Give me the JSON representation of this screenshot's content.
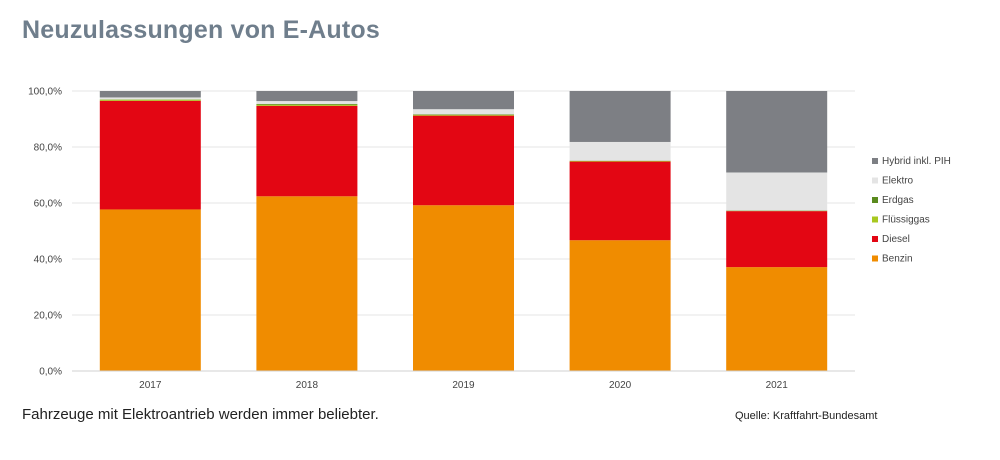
{
  "title": "Neuzulassungen von E-Autos",
  "caption": "Fahrzeuge mit Elektroantrieb werden immer beliebter.",
  "source": "Quelle: Kraftfahrt-Bundesamt",
  "chart_data": {
    "type": "bar",
    "stacked": true,
    "categories": [
      "2017",
      "2018",
      "2019",
      "2020",
      "2021"
    ],
    "series": [
      {
        "name": "Benzin",
        "color": "#f08c00",
        "values": [
          57.7,
          62.4,
          59.2,
          46.7,
          37.1
        ]
      },
      {
        "name": "Diesel",
        "color": "#e30613",
        "values": [
          38.8,
          32.3,
          32.0,
          28.1,
          20.0
        ]
      },
      {
        "name": "Flüssiggas",
        "color": "#a8c820",
        "values": [
          0.4,
          0.4,
          0.3,
          0.2,
          0.1
        ]
      },
      {
        "name": "Erdgas",
        "color": "#5a8a1e",
        "values": [
          0.1,
          0.3,
          0.2,
          0.1,
          0.1
        ]
      },
      {
        "name": "Elektro",
        "color": "#e4e4e4",
        "values": [
          0.7,
          1.0,
          1.8,
          6.7,
          13.6
        ]
      },
      {
        "name": "Hybrid inkl. PIH",
        "color": "#7d7f84",
        "values": [
          2.3,
          3.6,
          6.5,
          18.2,
          29.1
        ]
      }
    ],
    "legend_order": [
      "Hybrid inkl. PIH",
      "Elektro",
      "Erdgas",
      "Flüssiggas",
      "Diesel",
      "Benzin"
    ],
    "yticks": [
      "0,0%",
      "20,0%",
      "40,0%",
      "60,0%",
      "80,0%",
      "100,0%"
    ],
    "ylim": [
      0,
      100
    ],
    "grid": true,
    "legend_position": "right"
  }
}
